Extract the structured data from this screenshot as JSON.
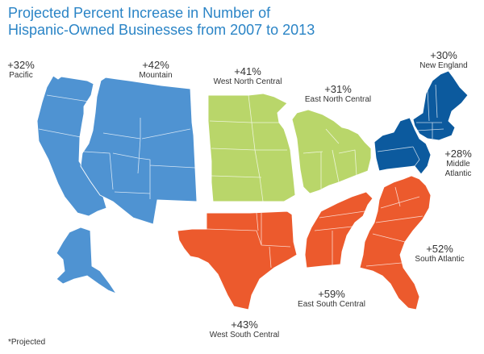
{
  "title_lines": [
    "Projected Percent Increase in Number of",
    "Hispanic-Owned Businesses from 2007 to 2013"
  ],
  "footnote": "*Projected",
  "colors": {
    "title": "#2a84c6",
    "blue_region": "#4f93d2",
    "green_region": "#b9d66a",
    "orange_region": "#ec5a2d",
    "dark_blue_region": "#0c5a9e"
  },
  "regions": [
    {
      "key": "pacific",
      "name": "Pacific",
      "percent": "+32%",
      "value": 32,
      "color": "blue_region"
    },
    {
      "key": "mountain",
      "name": "Mountain",
      "percent": "+42%",
      "value": 42,
      "color": "blue_region"
    },
    {
      "key": "west_north_central",
      "name": "West North Central",
      "percent": "+41%",
      "value": 41,
      "color": "green_region"
    },
    {
      "key": "east_north_central",
      "name": "East North Central",
      "percent": "+31%",
      "value": 31,
      "color": "green_region"
    },
    {
      "key": "new_england",
      "name": "New England",
      "percent": "+30%",
      "value": 30,
      "color": "dark_blue_region"
    },
    {
      "key": "middle_atlantic",
      "name": "Middle Atlantic",
      "name_lines": [
        "Middle",
        "Atlantic"
      ],
      "percent": "+28%",
      "value": 28,
      "color": "dark_blue_region"
    },
    {
      "key": "south_atlantic",
      "name": "South Atlantic",
      "percent": "+52%",
      "value": 52,
      "color": "orange_region"
    },
    {
      "key": "east_south_central",
      "name": "East South Central",
      "percent": "+59%",
      "value": 59,
      "color": "orange_region"
    },
    {
      "key": "west_south_central",
      "name": "West South Central",
      "percent": "+43%",
      "value": 43,
      "color": "orange_region"
    }
  ]
}
